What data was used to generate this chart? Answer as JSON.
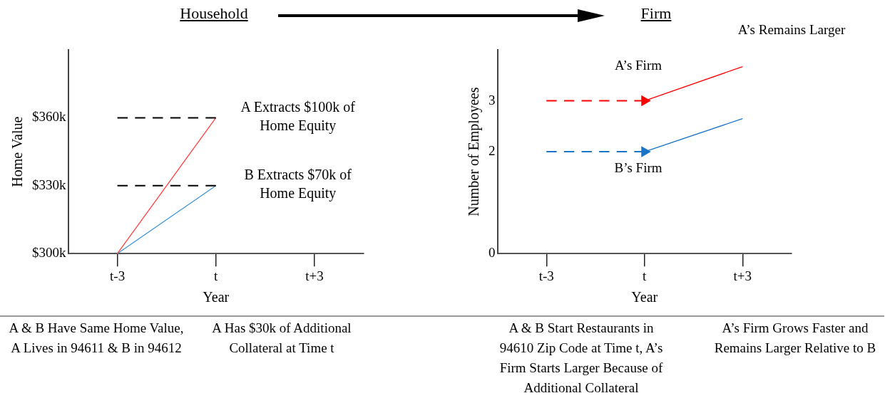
{
  "chart_data": [
    {
      "type": "line",
      "title": "Household",
      "xlabel": "Year",
      "ylabel": "Home Value",
      "categories": [
        "t-3",
        "t",
        "t+3"
      ],
      "ylim": [
        300,
        390
      ],
      "yticks": [
        {
          "value": 300,
          "label": "$300k"
        },
        {
          "value": 330,
          "label": "$330k"
        },
        {
          "value": 360,
          "label": "$360k"
        }
      ],
      "grid": false,
      "legend": false,
      "marker": "none",
      "series": [
        {
          "color": "#000000",
          "line_style": "dashed",
          "x": [
            "t-3",
            "t"
          ],
          "values": [
            360,
            360
          ]
        },
        {
          "color": "#000000",
          "line_style": "dashed",
          "x": [
            "t-3",
            "t"
          ],
          "values": [
            330,
            330
          ]
        },
        {
          "color": "#ff4040",
          "line_style": "solid",
          "x": [
            "t-3",
            "t"
          ],
          "values": [
            300,
            360
          ]
        },
        {
          "color": "#3a95d8",
          "line_style": "solid",
          "x": [
            "t-3",
            "t"
          ],
          "values": [
            300,
            330
          ]
        }
      ],
      "annotations": [
        {
          "text": "A Extracts $100k of Home Equity",
          "x": "t",
          "y": 360
        },
        {
          "text": "B Extracts $70k of Home Equity",
          "x": "t",
          "y": 330
        },
        "A & B Have Same Home Value, A Lives in 94611 & B in 94612",
        "A Has $30k of Additional Collateral at Time t"
      ]
    },
    {
      "type": "line",
      "title": "Firm",
      "xlabel": "Year",
      "ylabel": "Number of Employees",
      "categories": [
        "t-3",
        "t",
        "t+3"
      ],
      "ylim": [
        0,
        4
      ],
      "yticks": [
        0,
        2,
        3
      ],
      "grid": false,
      "legend": false,
      "marker": "none",
      "series": [
        {
          "color": "#ff0000",
          "line_style": "dashed",
          "marker": "triangle",
          "x": [
            "t-3",
            "t"
          ],
          "values": [
            3,
            3
          ]
        },
        {
          "color": "#1a75c9",
          "line_style": "dashed",
          "marker": "triangle",
          "x": [
            "t-3",
            "t"
          ],
          "values": [
            2,
            2
          ]
        },
        {
          "color": "#ff0000",
          "line_style": "solid",
          "x": [
            "t",
            "t+3"
          ],
          "values": [
            3,
            3.67
          ]
        },
        {
          "color": "#1a75c9",
          "line_style": "solid",
          "x": [
            "t",
            "t+3"
          ],
          "values": [
            2,
            2.65
          ]
        }
      ],
      "annotations": [
        "A’s Firm",
        "B’s Firm",
        "A’s Remains Larger",
        "A & B Start Restaurants in 94610 Zip Code at Time t, A’s Firm Starts Larger Because of Additional Collateral",
        "A’s Firm Grows Faster and Remains Larger Relative to B"
      ]
    }
  ]
}
